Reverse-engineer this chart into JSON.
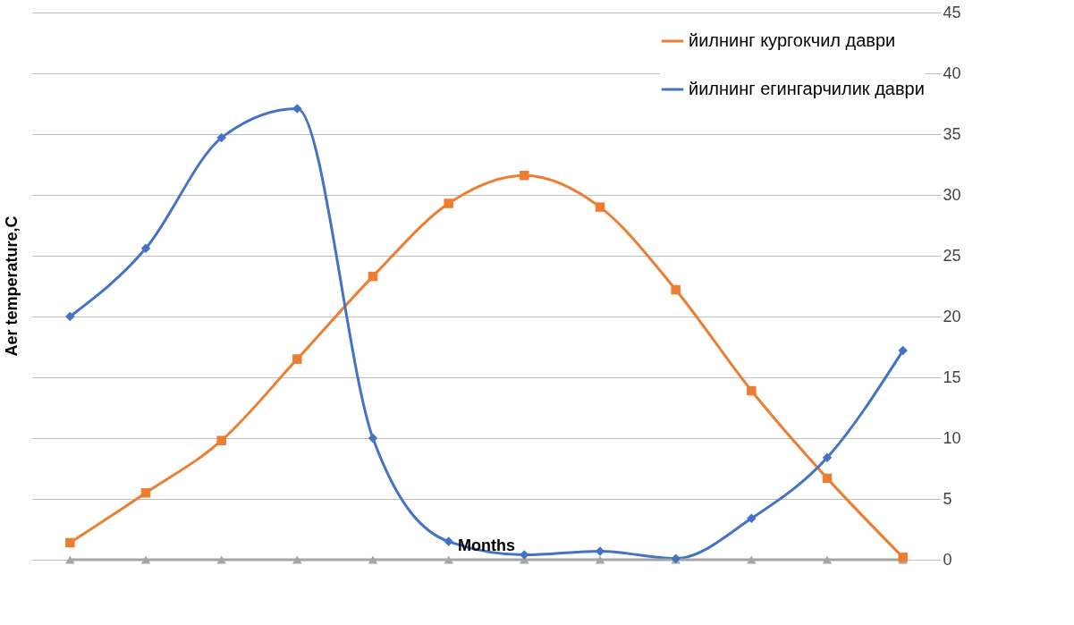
{
  "chart_data": {
    "type": "line",
    "xlabel": "Months",
    "ylabel": "Aer temperature,C",
    "categories": [
      null,
      null,
      null,
      null,
      null,
      null,
      null,
      null,
      null,
      null,
      null,
      null
    ],
    "series": [
      {
        "color": "#a5a5a5",
        "marker": "triangle",
        "values": [
          0,
          0,
          0,
          0,
          0,
          0,
          0,
          0,
          0,
          0,
          0,
          0
        ]
      },
      {
        "name": "йилнинг кургокчил даври",
        "color": "#ed7d31",
        "marker": "square",
        "values": [
          1.4,
          5.5,
          9.8,
          16.5,
          23.3,
          29.3,
          31.6,
          29.0,
          22.2,
          13.9,
          6.7,
          0.2
        ]
      },
      {
        "name": "йилнинг егингарчилик даври",
        "color": "#4472c4",
        "marker": "diamond",
        "values": [
          20.0,
          25.6,
          34.7,
          37.1,
          10.0,
          1.5,
          0.4,
          0.7,
          0.1,
          3.4,
          8.4,
          17.2
        ]
      }
    ],
    "ylim": [
      0,
      45
    ],
    "yticks": [
      0,
      5,
      10,
      15,
      20,
      25,
      30,
      35,
      40,
      45
    ],
    "grid": "y",
    "legend": "top right",
    "tick_labels": "y"
  }
}
